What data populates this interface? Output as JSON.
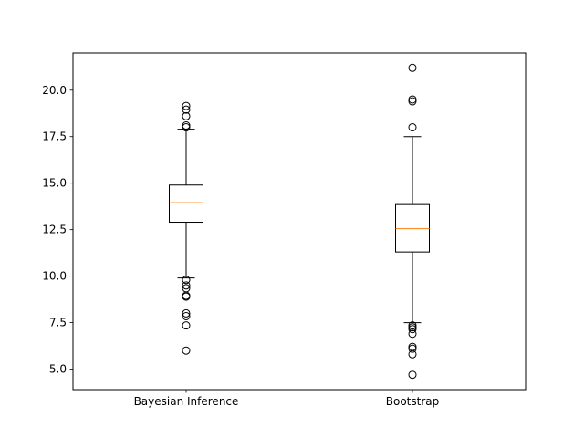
{
  "chart_data": {
    "type": "box",
    "title": "",
    "xlabel": "",
    "ylabel": "",
    "ylim": [
      3.9,
      22.0
    ],
    "yticks": [
      5.0,
      7.5,
      10.0,
      12.5,
      15.0,
      17.5,
      20.0
    ],
    "ytick_labels": [
      "5.0",
      "7.5",
      "10.0",
      "12.5",
      "15.0",
      "17.5",
      "20.0"
    ],
    "grid": false,
    "categories": [
      "Bayesian Inference",
      "Bootstrap"
    ],
    "series": [
      {
        "whisker_low": 9.9,
        "q1": 12.9,
        "median": 13.95,
        "q3": 14.9,
        "whisker_high": 17.9,
        "outliers": [
          19.15,
          18.95,
          18.6,
          18.1,
          18.0,
          9.8,
          9.5,
          9.35,
          8.95,
          8.9,
          8.0,
          7.85,
          7.35,
          6.0
        ]
      },
      {
        "whisker_low": 7.5,
        "q1": 11.3,
        "median": 12.55,
        "q3": 13.85,
        "whisker_high": 17.5,
        "outliers": [
          21.2,
          19.5,
          19.4,
          18.0,
          7.35,
          7.25,
          7.15,
          6.9,
          6.2,
          6.1,
          5.8,
          4.7
        ]
      }
    ],
    "colors": {
      "box": "#000000",
      "median": "#ff7f0e",
      "outlier_edge": "#000000"
    }
  }
}
